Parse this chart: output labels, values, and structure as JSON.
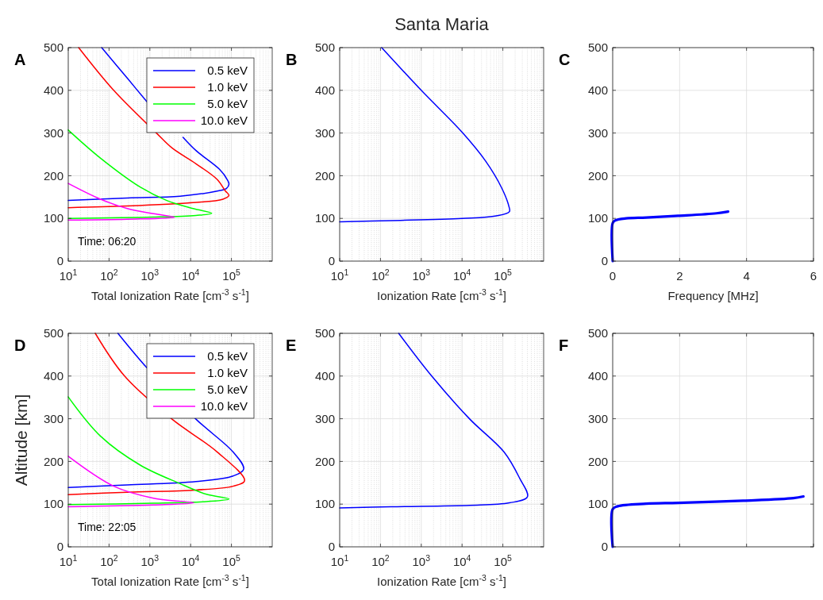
{
  "chart_data": [
    {
      "type": "line",
      "xlabel": "Total Ionization Rate [cm$^{-3}$ s$^{-1}$]",
      "annotations": [
        "A",
        "Time: 06:20"
      ],
      "log": "x",
      "grid": true,
      "legend": "top right",
      "xlim": [
        10,
        1000000
      ],
      "xticks": [
        {
          "value": 10,
          "label": "10$^{1}$"
        },
        {
          "value": 100,
          "label": "10$^{2}$"
        },
        {
          "value": 1000,
          "label": "10$^{3}$"
        },
        {
          "value": 10000,
          "label": "10$^{4}$"
        },
        {
          "value": 100000,
          "label": "10$^{5}$"
        }
      ],
      "ylim": [
        0,
        500
      ],
      "yticks": [
        0,
        100,
        200,
        300,
        400,
        500
      ],
      "series": [
        {
          "name": "0.5 keV",
          "color": "#0000ff",
          "x": [
            66,
            300,
            850,
            3000,
            6500,
            13500,
            51000,
            80000,
            87000,
            75000,
            50000,
            5500,
            280,
            10
          ],
          "values": [
            500,
            425,
            373,
            null,
            290,
            259,
            215,
            190,
            180,
            170,
            165,
            152,
            148,
            142
          ]
        },
        {
          "name": "1.0 keV",
          "color": "#ff0000",
          "x": [
            18,
            130,
            1450,
            3500,
            13500,
            45000,
            70000,
            87000,
            62000,
            11500,
            280,
            10
          ],
          "values": [
            500,
            400,
            300,
            265,
            228,
            191,
            165,
            154,
            145,
            137,
            129,
            125
          ]
        },
        {
          "name": "5.0 keV",
          "color": "#00ff00",
          "x": [
            10,
            62,
            590,
            2600,
            11500,
            33000,
            13500,
            1200,
            10
          ],
          "values": [
            307,
            241,
            173,
            142,
            123,
            112,
            107,
            103,
            100
          ]
        },
        {
          "name": "10.0 keV",
          "color": "#ff00ff",
          "x": [
            10,
            62,
            280,
            1230,
            4000,
            280,
            10
          ],
          "values": [
            182,
            145,
            123,
            111,
            103,
            98,
            96
          ]
        }
      ]
    },
    {
      "type": "line",
      "title": "Santa Maria",
      "xlabel": "Ionization Rate [cm$^{-3}$ s$^{-1}$]",
      "annotations": [
        "B"
      ],
      "log": "x",
      "grid": true,
      "xlim": [
        10,
        1000000
      ],
      "xticks": [
        {
          "value": 10,
          "label": "10$^{1}$"
        },
        {
          "value": 100,
          "label": "10$^{2}$"
        },
        {
          "value": 1000,
          "label": "10$^{3}$"
        },
        {
          "value": 10000,
          "label": "10$^{4}$"
        },
        {
          "value": 100000,
          "label": "10$^{5}$"
        }
      ],
      "ylim": [
        0,
        500
      ],
      "yticks": [
        0,
        100,
        200,
        300,
        400,
        500
      ],
      "series": [
        {
          "color": "#0000ff",
          "x": [
            107,
            1000,
            10000,
            38000,
            93000,
            140000,
            145000,
            69000,
            10000,
            180,
            10
          ],
          "values": [
            500,
            400,
            302,
            234,
            172,
            129,
            116,
            106,
            100,
            95,
            92
          ]
        }
      ]
    },
    {
      "type": "line",
      "xlabel": "Frequency [MHz]",
      "annotations": [
        "C"
      ],
      "grid": true,
      "xlim": [
        0,
        6
      ],
      "xticks": [
        0,
        2,
        4,
        6
      ],
      "ylim": [
        0,
        500
      ],
      "yticks": [
        0,
        100,
        200,
        300,
        400,
        500
      ],
      "series": [
        {
          "color": "#0000ff",
          "x": [
            0,
            0,
            0.07,
            0.4,
            1,
            1.95,
            3.1,
            3.45
          ],
          "values": [
            0,
            89,
            95,
            100,
            102,
            106,
            112,
            116
          ]
        }
      ]
    },
    {
      "type": "line",
      "xlabel": "Total Ionization Rate [cm$^{-3}$ s$^{-1}$]",
      "ylabel": "Altitude [km]",
      "annotations": [
        "D",
        "Time: 22:05"
      ],
      "log": "x",
      "grid": true,
      "legend": "top right",
      "xlim": [
        10,
        1000000
      ],
      "xticks": [
        {
          "value": 10,
          "label": "10$^{1}$"
        },
        {
          "value": 100,
          "label": "10$^{2}$"
        },
        {
          "value": 1000,
          "label": "10$^{3}$"
        },
        {
          "value": 10000,
          "label": "10$^{4}$"
        },
        {
          "value": 100000,
          "label": "10$^{5}$"
        }
      ],
      "ylim": [
        0,
        500
      ],
      "yticks": [
        0,
        100,
        200,
        300,
        400,
        500
      ],
      "series": [
        {
          "name": "0.5 keV",
          "color": "#0000ff",
          "x": [
            165,
            850,
            13500,
            110000,
            200000,
            110000,
            13500,
            280,
            10
          ],
          "values": [
            500,
            419,
            299,
            222,
            182,
            166,
            153,
            145,
            139
          ]
        },
        {
          "name": "1.0 keV",
          "color": "#ff0000",
          "x": [
            46,
            240,
            3500,
            45000,
            210000,
            110000,
            13500,
            280,
            10
          ],
          "values": [
            500,
            400,
            299,
            222,
            155,
            142,
            133,
            128,
            122
          ]
        },
        {
          "name": "5.0 keV",
          "color": "#00ff00",
          "x": [
            10,
            62,
            590,
            5500,
            24500,
            87000,
            24500,
            1230,
            10
          ],
          "values": [
            351,
            259,
            191,
            148,
            123,
            112,
            106,
            102,
            99
          ]
        },
        {
          "name": "10.0 keV",
          "color": "#ff00ff",
          "x": [
            10,
            130,
            1230,
            12000,
            1230,
            10
          ],
          "values": [
            212,
            142,
            114,
            103,
            98,
            94
          ]
        }
      ]
    },
    {
      "type": "line",
      "xlabel": "Ionization Rate [cm$^{-3}$ s$^{-1}$]",
      "annotations": [
        "E"
      ],
      "log": "x",
      "grid": true,
      "xlim": [
        10,
        1000000
      ],
      "xticks": [
        {
          "value": 10,
          "label": "10$^{1}$"
        },
        {
          "value": 100,
          "label": "10$^{2}$"
        },
        {
          "value": 1000,
          "label": "10$^{3}$"
        },
        {
          "value": 10000,
          "label": "10$^{4}$"
        },
        {
          "value": 100000,
          "label": "10$^{5}$"
        }
      ],
      "ylim": [
        0,
        500
      ],
      "yticks": [
        0,
        100,
        200,
        300,
        400,
        500
      ],
      "series": [
        {
          "color": "#0000ff",
          "x": [
            280,
            1800,
            15500,
            107000,
            260000,
            400000,
            145000,
            15500,
            180,
            10
          ],
          "values": [
            500,
            400,
            299,
            222,
            160,
            117,
            103,
            97,
            94,
            91
          ]
        }
      ]
    },
    {
      "type": "line",
      "annotations": [
        "F"
      ],
      "grid": true,
      "tick_labels": "y",
      "xlim": [
        0,
        6
      ],
      "xticks": [
        0,
        2,
        4,
        6
      ],
      "ylim": [
        0,
        500
      ],
      "yticks": [
        0,
        100,
        200,
        300,
        400,
        500
      ],
      "series": [
        {
          "color": "#0000ff",
          "x": [
            0,
            0,
            0.15,
            1,
            1.95,
            3.9,
            5.4,
            5.7
          ],
          "values": [
            0,
            88,
            95,
            101,
            103,
            108,
            114,
            118
          ]
        }
      ]
    }
  ]
}
